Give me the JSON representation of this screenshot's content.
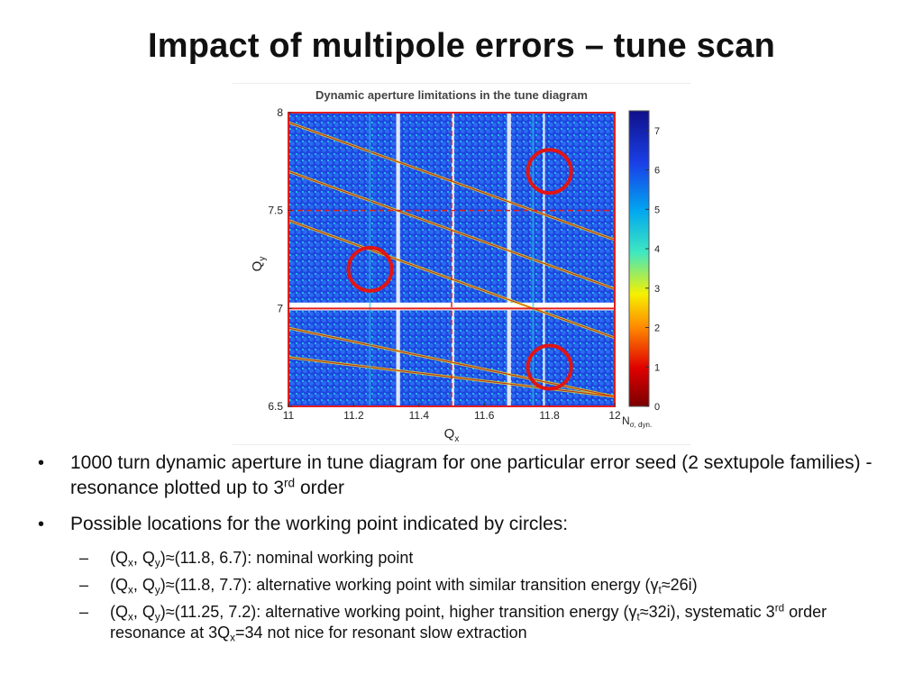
{
  "slide": {
    "title": "Impact of multipole errors – tune scan"
  },
  "figure": {
    "title": "Dynamic aperture limitations in the tune diagram",
    "xlabel": "Q",
    "xlabel_sub": "x",
    "ylabel": "Q",
    "ylabel_sub": "y",
    "colorbar_label": "N",
    "colorbar_label_sub": "σ, dyn.",
    "colors": {
      "high": "#1a2fe0",
      "mid": "#22c3e8",
      "low": "#c00000",
      "frame": "#e02020",
      "circle": "#e01515"
    }
  },
  "chart_data": {
    "type": "scatter",
    "title": "Dynamic aperture limitations in the tune diagram",
    "xlabel": "Qx",
    "ylabel": "Qy",
    "xlim": [
      11,
      12
    ],
    "ylim": [
      6.5,
      8
    ],
    "x_ticks": [
      "11",
      "11.2",
      "11.4",
      "11.6",
      "11.8",
      "12"
    ],
    "y_ticks": [
      "6.5",
      "7",
      "7.5",
      "8"
    ],
    "colorbar": {
      "label": "Nσ, dyn.",
      "range": [
        0,
        7.5
      ],
      "ticks": [
        "0",
        "1",
        "2",
        "3",
        "4",
        "5",
        "6",
        "7"
      ]
    },
    "circles": [
      {
        "qx": 11.8,
        "qy": 6.7,
        "label": "nominal working point"
      },
      {
        "qx": 11.8,
        "qy": 7.7,
        "label": "alternative working point"
      },
      {
        "qx": 11.25,
        "qy": 7.2,
        "label": "alternative working point, higher transition energy"
      }
    ]
  },
  "bullets": {
    "b1": {
      "text": "1000 turn dynamic aperture in tune diagram for one particular error seed (2 sextupole families) - resonance plotted up to 3",
      "sup": "rd",
      "tail": " order"
    },
    "b2": {
      "text": "Possible locations for the working point indicated by circles:"
    },
    "s1": {
      "a": "(Q",
      "b": "x",
      "c": ", Q",
      "d": "y",
      "e": ")≈(11.8, 6.7): nominal working point"
    },
    "s2": {
      "a": "(Q",
      "b": "x",
      "c": ", Q",
      "d": "y",
      "e": ")≈(11.8, 7.7): alternative working point with similar transition energy (γ",
      "f": "t",
      "g": "≈26i)"
    },
    "s3": {
      "a": "(Q",
      "b": "x",
      "c": ", Q",
      "d": "y",
      "e": ")≈(11.25, 7.2): alternative working point, higher transition energy (γ",
      "f": "t",
      "g": "≈32i), systematic 3",
      "h": "rd",
      "i": " order resonance at 3Q",
      "j": "x",
      "k": "=34 not nice for resonant slow extraction"
    }
  }
}
